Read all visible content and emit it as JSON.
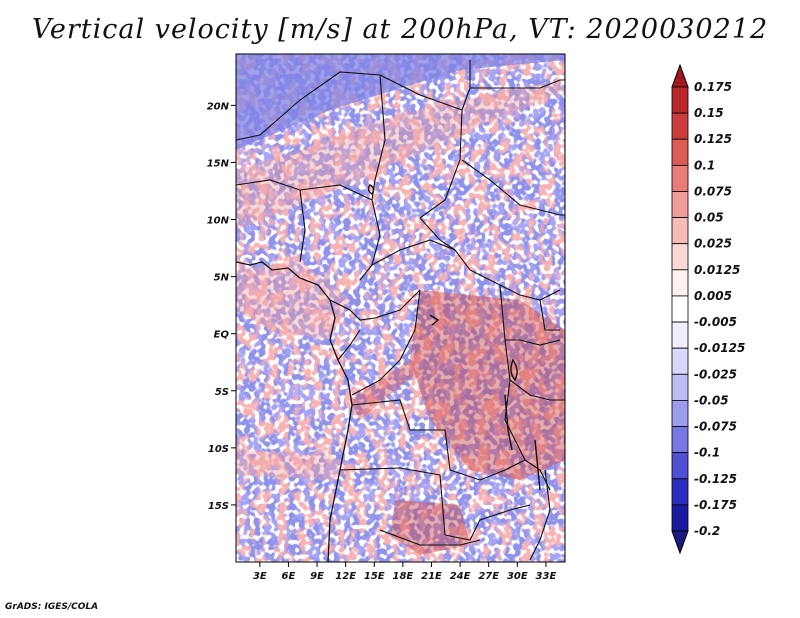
{
  "title": "Vertical velocity [m/s] at 200hPa, VT: 2020030212",
  "credit": "GrADS: IGES/COLA",
  "map": {
    "lat_labels": [
      "20N",
      "15N",
      "10N",
      "5N",
      "EQ",
      "5S",
      "10S",
      "15S"
    ],
    "lon_labels": [
      "3E",
      "6E",
      "9E",
      "12E",
      "15E",
      "18E",
      "21E",
      "24E",
      "27E",
      "30E",
      "33E"
    ],
    "lat_values": [
      20,
      15,
      10,
      5,
      0,
      -5,
      -10,
      -15
    ],
    "lon_values": [
      3,
      6,
      9,
      12,
      15,
      18,
      21,
      24,
      27,
      30,
      33
    ],
    "lon_range": [
      0.5,
      35
    ],
    "lat_range": [
      -20,
      24.5
    ]
  },
  "colorbar": {
    "labels": [
      "0.175",
      "0.15",
      "0.125",
      "0.1",
      "0.075",
      "0.05",
      "0.025",
      "0.0125",
      "0.005",
      "-0.005",
      "-0.0125",
      "-0.025",
      "-0.05",
      "-0.075",
      "-0.1",
      "-0.125",
      "-0.175",
      "-0.2"
    ],
    "colors": [
      "#a01820",
      "#b8282c",
      "#cc3c3c",
      "#dc5c58",
      "#e87c78",
      "#f09c98",
      "#f6bcb8",
      "#fad8d6",
      "#fdf0ef",
      "#ffffff",
      "#efeefd",
      "#d8d8fa",
      "#bcbcf4",
      "#9c9ced",
      "#7878e2",
      "#5050d4",
      "#2c2cc0",
      "#1a1aa0",
      "#1a1a80"
    ]
  }
}
